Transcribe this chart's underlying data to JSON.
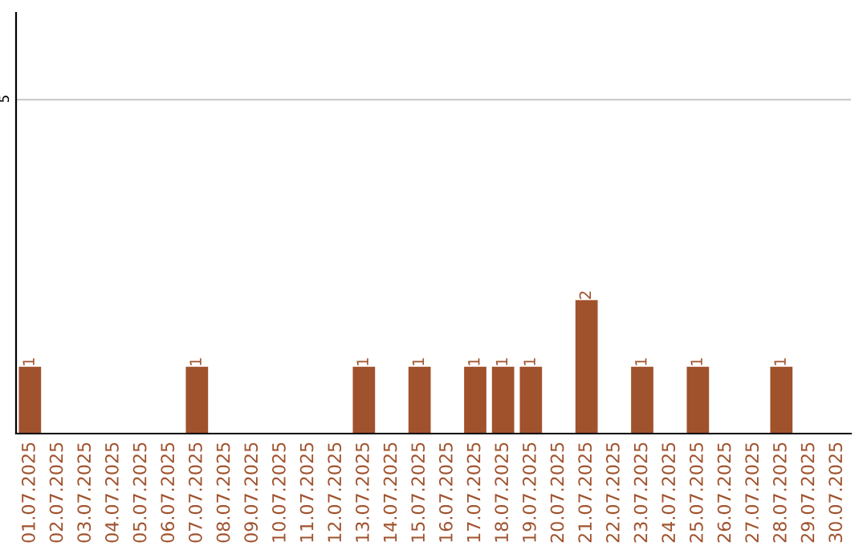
{
  "chart_data": {
    "type": "bar",
    "categories": [
      "01.07.2025",
      "02.07.2025",
      "03.07.2025",
      "04.07.2025",
      "05.07.2025",
      "06.07.2025",
      "07.07.2025",
      "08.07.2025",
      "09.07.2025",
      "10.07.2025",
      "11.07.2025",
      "12.07.2025",
      "13.07.2025",
      "14.07.2025",
      "15.07.2025",
      "16.07.2025",
      "17.07.2025",
      "18.07.2025",
      "19.07.2025",
      "20.07.2025",
      "21.07.2025",
      "22.07.2025",
      "23.07.2025",
      "24.07.2025",
      "25.07.2025",
      "26.07.2025",
      "27.07.2025",
      "28.07.2025",
      "29.07.2025",
      "30.07.2025"
    ],
    "values": [
      1,
      0,
      0,
      0,
      0,
      0,
      1,
      0,
      0,
      0,
      0,
      0,
      1,
      0,
      1,
      0,
      1,
      1,
      1,
      0,
      2,
      0,
      1,
      0,
      1,
      0,
      0,
      1,
      0,
      0
    ],
    "value_labels": [
      "1",
      null,
      null,
      null,
      null,
      null,
      "1",
      null,
      null,
      null,
      null,
      null,
      "1",
      null,
      "1",
      null,
      "1",
      "1",
      "1",
      null,
      "2",
      null,
      "1",
      null,
      "1",
      null,
      null,
      "1",
      null,
      null
    ],
    "color": "#a0522d",
    "ylim": [
      0,
      6.3
    ],
    "yticks": [
      5
    ],
    "grid": "y"
  }
}
